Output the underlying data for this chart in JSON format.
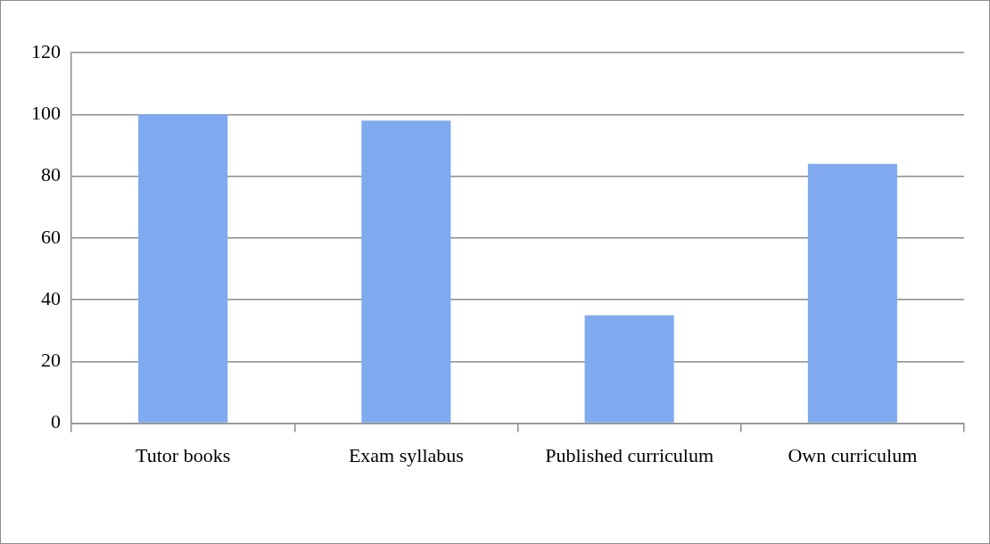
{
  "chart_data": {
    "type": "bar",
    "categories": [
      "Tutor books",
      "Exam syllabus",
      "Published curriculum",
      "Own curriculum"
    ],
    "values": [
      100,
      98,
      35,
      84
    ],
    "color": "#7faaf0",
    "ylim": [
      0,
      120
    ],
    "yticks": [
      0,
      20,
      40,
      60,
      80,
      100,
      120
    ],
    "grid": "y",
    "legend": false
  }
}
